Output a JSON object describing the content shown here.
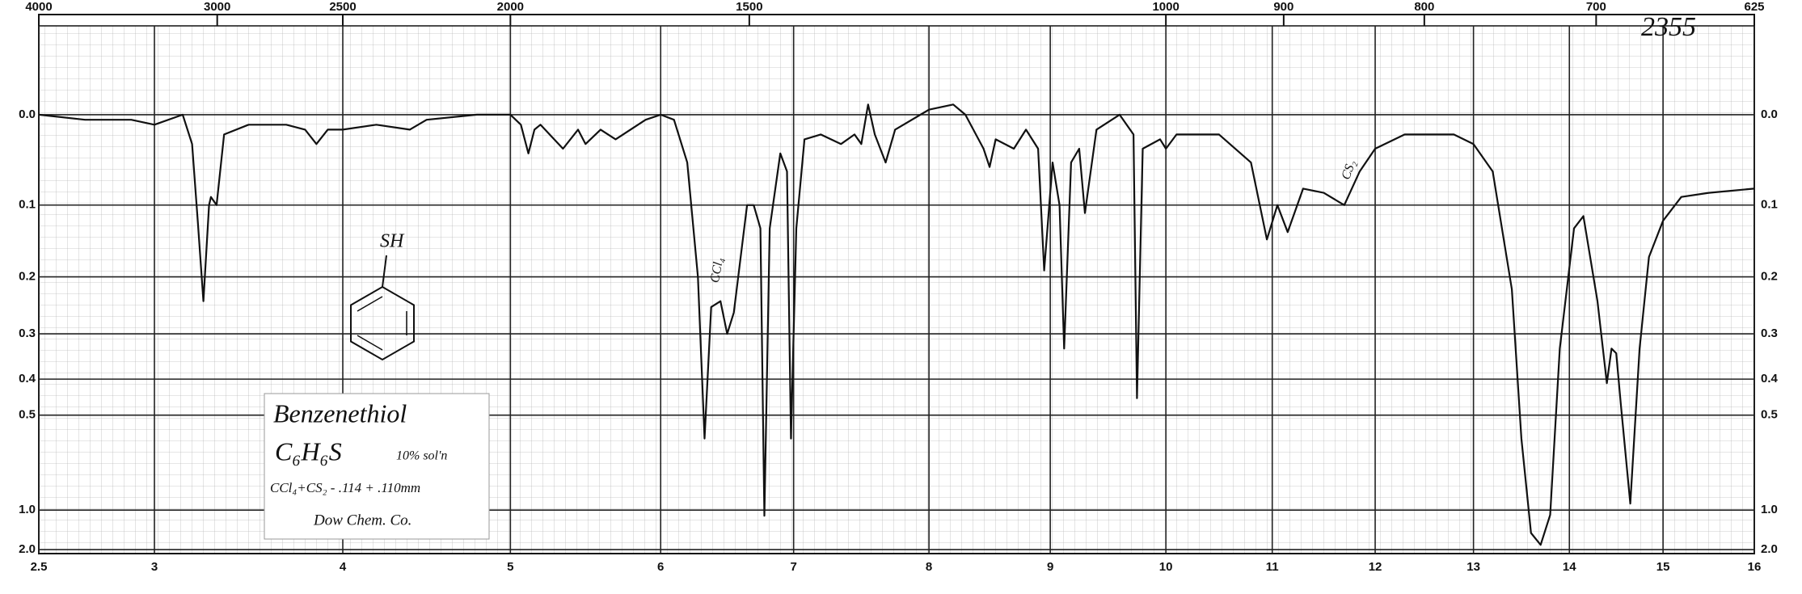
{
  "chart_data": {
    "type": "line",
    "x": [
      2.5,
      2.7,
      2.9,
      3.0,
      3.15,
      3.2,
      3.23,
      3.26,
      3.29,
      3.3,
      3.33,
      3.37,
      3.5,
      3.7,
      3.8,
      3.86,
      3.92,
      4.0,
      4.2,
      4.4,
      4.5,
      4.8,
      5.0,
      5.07,
      5.12,
      5.16,
      5.2,
      5.35,
      5.45,
      5.5,
      5.6,
      5.7,
      5.9,
      6.0,
      6.1,
      6.2,
      6.28,
      6.33,
      6.38,
      6.45,
      6.5,
      6.55,
      6.65,
      6.7,
      6.75,
      6.78,
      6.82,
      6.9,
      6.95,
      6.98,
      7.02,
      7.08,
      7.2,
      7.35,
      7.45,
      7.5,
      7.55,
      7.6,
      7.68,
      7.75,
      8.0,
      8.2,
      8.3,
      8.45,
      8.5,
      8.55,
      8.7,
      8.8,
      8.9,
      8.95,
      9.02,
      9.08,
      9.12,
      9.18,
      9.25,
      9.3,
      9.4,
      9.6,
      9.72,
      9.75,
      9.8,
      9.95,
      10.0,
      10.1,
      10.5,
      10.8,
      10.95,
      11.05,
      11.15,
      11.3,
      11.5,
      11.7,
      11.85,
      12.0,
      12.3,
      12.8,
      13.0,
      13.2,
      13.4,
      13.5,
      13.6,
      13.7,
      13.8,
      13.9,
      14.05,
      14.15,
      14.3,
      14.4,
      14.45,
      14.5,
      14.55,
      14.65,
      14.75,
      14.85,
      15.0,
      15.2,
      15.5,
      16.0
    ],
    "values": [
      0.0,
      0.005,
      0.005,
      0.01,
      0.0,
      0.03,
      0.12,
      0.24,
      0.1,
      0.09,
      0.1,
      0.02,
      0.01,
      0.01,
      0.015,
      0.03,
      0.015,
      0.015,
      0.01,
      0.015,
      0.005,
      0.0,
      0.0,
      0.01,
      0.04,
      0.015,
      0.01,
      0.035,
      0.015,
      0.03,
      0.015,
      0.025,
      0.005,
      0.0,
      0.005,
      0.05,
      0.2,
      0.58,
      0.25,
      0.24,
      0.3,
      0.26,
      0.1,
      0.1,
      0.13,
      1.06,
      0.13,
      0.04,
      0.06,
      0.58,
      0.13,
      0.025,
      0.02,
      0.03,
      0.02,
      0.03,
      -0.01,
      0.02,
      0.05,
      0.015,
      -0.005,
      -0.01,
      0.0,
      0.035,
      0.055,
      0.025,
      0.035,
      0.015,
      0.035,
      0.19,
      0.05,
      0.1,
      0.33,
      0.05,
      0.035,
      0.11,
      0.015,
      0.0,
      0.02,
      0.45,
      0.035,
      0.025,
      0.035,
      0.02,
      0.02,
      0.05,
      0.145,
      0.1,
      0.135,
      0.08,
      0.085,
      0.1,
      0.06,
      0.035,
      0.02,
      0.02,
      0.03,
      0.06,
      0.22,
      0.58,
      1.32,
      1.68,
      1.05,
      0.33,
      0.13,
      0.114,
      0.24,
      0.41,
      0.33,
      0.34,
      0.47,
      0.94,
      0.33,
      0.17,
      0.12,
      0.09,
      0.085,
      0.08
    ],
    "color": "#111111",
    "xlim": [
      2.5,
      16
    ],
    "xticks": [
      2.5,
      3,
      4,
      5,
      6,
      7,
      8,
      9,
      10,
      11,
      12,
      13,
      14,
      15,
      16
    ],
    "x2ticks": [
      4000,
      3000,
      2500,
      2000,
      1500,
      1000,
      900,
      800,
      700,
      625
    ],
    "ylim": [
      -0.08,
      3
    ],
    "yscale": "absorbance",
    "yticks": [
      {
        "value": 0,
        "label": "0.0"
      },
      0.1,
      0.2,
      0.3,
      0.4,
      0.5,
      {
        "value": 1,
        "label": "1.0"
      },
      {
        "value": 2,
        "label": "2.0"
      }
    ],
    "grid": true,
    "annotations": [
      "2355",
      "SH",
      "Benzenethiol",
      "C₆H₆S",
      "10% sol'n",
      "CCl₄+CS₂ - .114 + .110mm",
      "Dow Chem. Co.",
      "CCl₄",
      "CS₂"
    ]
  }
}
